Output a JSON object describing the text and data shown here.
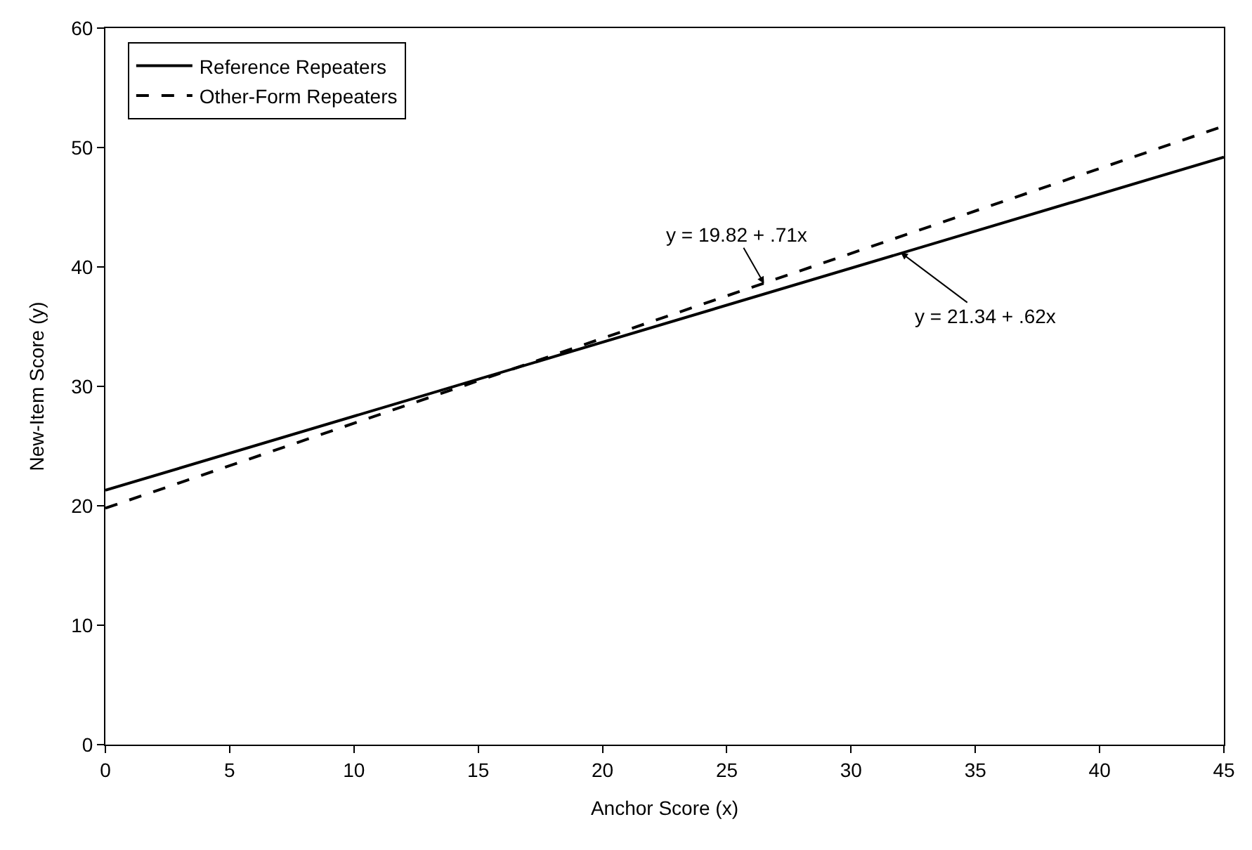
{
  "chart_data": {
    "type": "line",
    "xlabel": "Anchor Score (x)",
    "ylabel": "New-Item Score (y)",
    "x": [
      0,
      45
    ],
    "series": [
      {
        "name": "Reference Repeaters",
        "color": "#000000",
        "line_style": "solid",
        "values": [
          21.3,
          49.2
        ]
      },
      {
        "name": "Other-Form Repeaters",
        "color": "#000000",
        "line_style": "dashed",
        "values": [
          19.8,
          51.8
        ]
      }
    ],
    "annotations": [
      {
        "text": "y = 19.82 + .71x",
        "x": 26.5,
        "y": 38.6
      },
      {
        "text": "y = 21.34 + .62x",
        "x": 32,
        "y": 41.2
      }
    ],
    "xlim": [
      0,
      45
    ],
    "xticks": [
      0,
      5,
      10,
      15,
      20,
      25,
      30,
      35,
      40,
      45
    ],
    "ylim": [
      0,
      60
    ],
    "yticks": [
      0,
      10,
      20,
      30,
      40,
      50,
      60
    ],
    "legend": "top left",
    "marker": "none"
  }
}
